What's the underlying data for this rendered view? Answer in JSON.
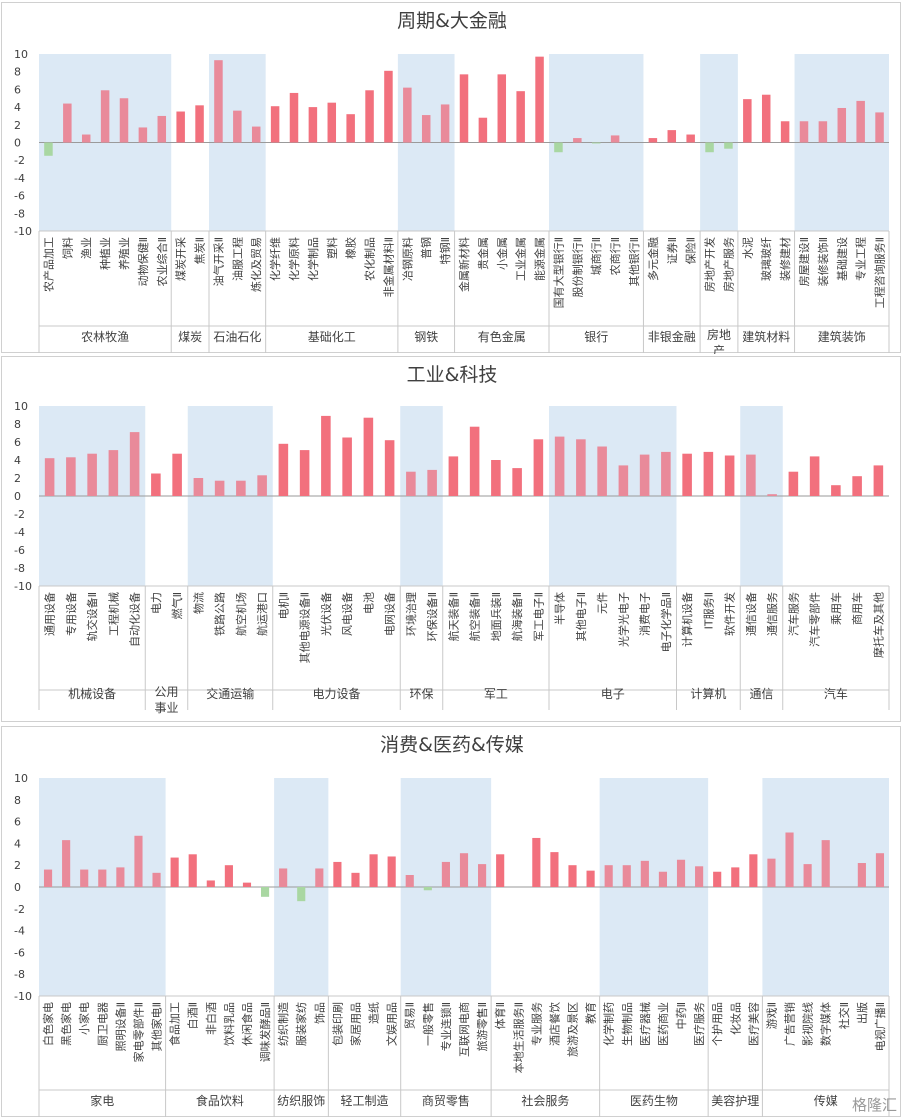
{
  "watermark": "格隆汇",
  "chart_data": [
    {
      "type": "bar",
      "title": "周期&大金融",
      "ylim": [
        -10,
        10
      ],
      "yticks": [
        10,
        8,
        6,
        4,
        2,
        0,
        -2,
        -4,
        -6,
        -8,
        -10
      ],
      "grid": false,
      "groups": [
        {
          "name": "农林牧渔",
          "shaded": true,
          "categories": [
            "农产品加工",
            "饲料",
            "渔业",
            "种植业",
            "养殖业",
            "动物保健Ⅱ",
            "农业综合Ⅱ"
          ],
          "values": [
            -1.5,
            4.4,
            0.9,
            5.9,
            5.0,
            1.7,
            3.0
          ]
        },
        {
          "name": "煤炭",
          "shaded": false,
          "categories": [
            "煤炭开采",
            "焦炭Ⅱ"
          ],
          "values": [
            3.5,
            4.2
          ]
        },
        {
          "name": "石油石化",
          "shaded": true,
          "categories": [
            "油气开采Ⅱ",
            "油服工程",
            "炼化及贸易"
          ],
          "values": [
            9.3,
            3.6,
            1.8
          ]
        },
        {
          "name": "基础化工",
          "shaded": false,
          "categories": [
            "化学纤维",
            "化学原料",
            "化学制品",
            "塑料",
            "橡胶",
            "农化制品",
            "非金属材料Ⅱ"
          ],
          "values": [
            4.1,
            5.6,
            4.0,
            4.5,
            3.2,
            5.9,
            8.1
          ]
        },
        {
          "name": "钢铁",
          "shaded": true,
          "categories": [
            "冶钢原料",
            "普钢",
            "特钢Ⅱ"
          ],
          "values": [
            6.2,
            3.1,
            4.3
          ]
        },
        {
          "name": "有色金属",
          "shaded": false,
          "categories": [
            "金属新材料",
            "贵金属",
            "小金属",
            "工业金属",
            "能源金属"
          ],
          "values": [
            7.7,
            2.8,
            7.7,
            5.8,
            9.7
          ]
        },
        {
          "name": "银行",
          "shaded": true,
          "categories": [
            "国有大型银行Ⅱ",
            "股份制银行Ⅱ",
            "城商行Ⅱ",
            "农商行Ⅱ",
            "其他银行Ⅱ"
          ],
          "values": [
            -1.1,
            0.5,
            -0.1,
            0.8,
            0.0
          ]
        },
        {
          "name": "非银金融",
          "shaded": false,
          "categories": [
            "多元金融",
            "证券Ⅱ",
            "保险Ⅱ"
          ],
          "values": [
            0.5,
            1.4,
            0.9
          ]
        },
        {
          "name": "房地产",
          "shaded": true,
          "categories": [
            "房地产开发",
            "房地产服务"
          ],
          "values": [
            -1.1,
            -0.7
          ]
        },
        {
          "name": "建筑材料",
          "shaded": false,
          "categories": [
            "水泥",
            "玻璃玻纤",
            "装修建材"
          ],
          "values": [
            4.9,
            5.4,
            2.4
          ]
        },
        {
          "name": "建筑装饰",
          "shaded": true,
          "categories": [
            "房屋建设Ⅱ",
            "装修装饰Ⅱ",
            "基础建设",
            "专业工程",
            "工程咨询服务Ⅱ"
          ],
          "values": [
            2.4,
            2.4,
            3.9,
            4.7,
            3.4
          ]
        }
      ]
    },
    {
      "type": "bar",
      "title": "工业&科技",
      "ylim": [
        -10,
        10
      ],
      "yticks": [
        10,
        8,
        6,
        4,
        2,
        0,
        -2,
        -4,
        -6,
        -8,
        -10
      ],
      "grid": false,
      "groups": [
        {
          "name": "机械设备",
          "shaded": true,
          "categories": [
            "通用设备",
            "专用设备",
            "轨交设备Ⅱ",
            "工程机械",
            "自动化设备"
          ],
          "values": [
            4.2,
            4.3,
            4.7,
            5.1,
            7.1
          ]
        },
        {
          "name": "公用事业",
          "shaded": false,
          "categories": [
            "电力",
            "燃气Ⅱ"
          ],
          "values": [
            2.5,
            4.7
          ]
        },
        {
          "name": "交通运输",
          "shaded": true,
          "categories": [
            "物流",
            "铁路公路",
            "航空机场",
            "航运港口"
          ],
          "values": [
            2.0,
            1.7,
            1.7,
            2.3
          ]
        },
        {
          "name": "电力设备",
          "shaded": false,
          "categories": [
            "电机Ⅱ",
            "其他电源设备Ⅱ",
            "光伏设备",
            "风电设备",
            "电池",
            "电网设备"
          ],
          "values": [
            5.8,
            5.1,
            8.9,
            6.5,
            8.7,
            6.2
          ]
        },
        {
          "name": "环保",
          "shaded": true,
          "categories": [
            "环境治理",
            "环保设备Ⅱ"
          ],
          "values": [
            2.7,
            2.9
          ]
        },
        {
          "name": "军工",
          "shaded": false,
          "categories": [
            "航天装备Ⅱ",
            "航空装备Ⅱ",
            "地面兵装Ⅱ",
            "航海装备Ⅱ",
            "军工电子Ⅱ"
          ],
          "values": [
            4.4,
            7.7,
            4.0,
            3.1,
            6.3
          ]
        },
        {
          "name": "电子",
          "shaded": true,
          "categories": [
            "半导体",
            "其他电子Ⅱ",
            "元件",
            "光学光电子",
            "消费电子",
            "电子化学品Ⅱ"
          ],
          "values": [
            6.6,
            6.3,
            5.5,
            3.4,
            4.6,
            4.9
          ]
        },
        {
          "name": "计算机",
          "shaded": false,
          "categories": [
            "计算机设备",
            "IT服务Ⅱ",
            "软件开发"
          ],
          "values": [
            4.7,
            4.9,
            4.5
          ]
        },
        {
          "name": "通信",
          "shaded": true,
          "categories": [
            "通信设备",
            "通信服务"
          ],
          "values": [
            4.6,
            0.2
          ]
        },
        {
          "name": "汽车",
          "shaded": false,
          "categories": [
            "汽车服务",
            "汽车零部件",
            "乘用车",
            "商用车",
            "摩托车及其他"
          ],
          "values": [
            2.7,
            4.4,
            1.2,
            2.2,
            3.4
          ]
        }
      ]
    },
    {
      "type": "bar",
      "title": "消费&医药&传媒",
      "ylim": [
        -10,
        10
      ],
      "yticks": [
        10,
        8,
        6,
        4,
        2,
        0,
        -2,
        -4,
        -6,
        -8,
        -10
      ],
      "grid": false,
      "groups": [
        {
          "name": "家电",
          "shaded": true,
          "categories": [
            "白色家电",
            "黑色家电",
            "小家电",
            "厨卫电器",
            "照明设备Ⅱ",
            "家电零部件Ⅱ",
            "其他家电Ⅱ"
          ],
          "values": [
            1.6,
            4.3,
            1.6,
            1.6,
            1.8,
            4.7,
            1.3
          ]
        },
        {
          "name": "食品饮料",
          "shaded": false,
          "categories": [
            "食品加工",
            "白酒Ⅱ",
            "非白酒",
            "饮料乳品",
            "休闲食品",
            "调味发酵品Ⅱ"
          ],
          "values": [
            2.7,
            3.0,
            0.6,
            2.0,
            0.4,
            -0.9
          ]
        },
        {
          "name": "纺织服饰",
          "shaded": true,
          "categories": [
            "纺织制造",
            "服装家纺",
            "饰品"
          ],
          "values": [
            1.7,
            -1.3,
            1.7
          ]
        },
        {
          "name": "轻工制造",
          "shaded": false,
          "categories": [
            "包装印刷",
            "家居用品",
            "造纸",
            "文娱用品"
          ],
          "values": [
            2.3,
            1.3,
            3.0,
            2.8
          ]
        },
        {
          "name": "商贸零售",
          "shaded": true,
          "categories": [
            "贸易Ⅱ",
            "一般零售",
            "专业连锁Ⅱ",
            "互联网电商",
            "旅游零售Ⅱ"
          ],
          "values": [
            1.1,
            -0.3,
            2.3,
            3.1,
            2.1
          ]
        },
        {
          "name": "社会服务",
          "shaded": false,
          "categories": [
            "体育Ⅱ",
            "本地生活服务Ⅱ",
            "专业服务",
            "酒店餐饮",
            "旅游及景区",
            "教育"
          ],
          "values": [
            3.0,
            0.0,
            4.5,
            3.2,
            2.0,
            1.5
          ]
        },
        {
          "name": "医药生物",
          "shaded": true,
          "categories": [
            "化学制药",
            "生物制品",
            "医疗器械",
            "医药商业",
            "中药Ⅱ",
            "医疗服务"
          ],
          "values": [
            2.0,
            2.0,
            2.4,
            1.4,
            2.5,
            1.9
          ]
        },
        {
          "name": "美容护理",
          "shaded": false,
          "categories": [
            "个护用品",
            "化妆品",
            "医疗美容"
          ],
          "values": [
            1.4,
            1.8,
            3.0
          ]
        },
        {
          "name": "传媒",
          "shaded": true,
          "categories": [
            "游戏Ⅱ",
            "广告营销",
            "影视院线",
            "数字媒体",
            "社交Ⅱ",
            "出版",
            "电视广播Ⅱ"
          ],
          "values": [
            2.6,
            5.0,
            2.1,
            4.3,
            0.0,
            2.2,
            3.1
          ]
        }
      ]
    }
  ],
  "colors": {
    "positive_bar": "#f2707d",
    "positive_bar_shaded": "#e98a9a",
    "negative_bar": "#a9d7a2",
    "shade": "#dce9f5",
    "axis": "#c8c8c8",
    "text": "#404040"
  }
}
